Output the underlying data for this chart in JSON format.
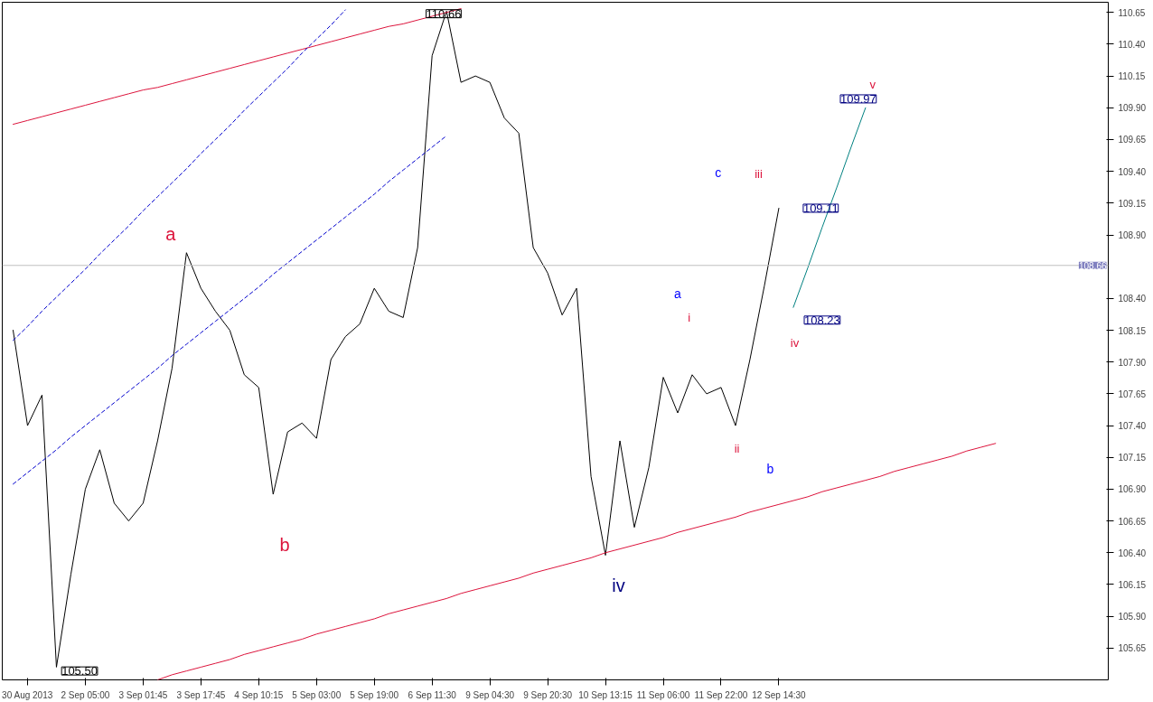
{
  "chart_data": {
    "type": "line",
    "categories": [
      null,
      "30 Aug 2013",
      null,
      null,
      null,
      "2 Sep 05:00",
      null,
      null,
      null,
      "3 Sep 01:45",
      null,
      null,
      null,
      "3 Sep 17:45",
      null,
      null,
      null,
      "4 Sep 10:15",
      null,
      null,
      null,
      "5 Sep 03:00",
      null,
      null,
      null,
      "5 Sep 19:00",
      null,
      null,
      null,
      "6 Sep 11:30",
      null,
      null,
      null,
      "9 Sep 04:30",
      null,
      null,
      null,
      "9 Sep 20:30",
      null,
      null,
      null,
      "10 Sep 13:15",
      null,
      null,
      null,
      "11 Sep 06:00",
      null,
      null,
      null,
      "11 Sep 22:00",
      null,
      null,
      null,
      "12 Sep 14:30",
      null,
      null,
      null,
      null,
      null,
      null,
      null,
      null,
      null,
      null,
      null,
      null,
      null,
      null,
      null,
      null,
      null,
      null,
      null,
      null,
      null,
      null
    ],
    "ylim": [
      105.4,
      110.73
    ],
    "yticks": [
      {
        "value": 105.65,
        "label": "105.65"
      },
      {
        "value": 105.9,
        "label": "105.90"
      },
      {
        "value": 106.15,
        "label": "106.15"
      },
      {
        "value": 106.4,
        "label": "106.40"
      },
      {
        "value": 106.65,
        "label": "106.65"
      },
      {
        "value": 106.9,
        "label": "106.90"
      },
      {
        "value": 107.15,
        "label": "107.15"
      },
      {
        "value": 107.4,
        "label": "107.40"
      },
      {
        "value": 107.65,
        "label": "107.65"
      },
      {
        "value": 107.9,
        "label": "107.90"
      },
      {
        "value": 108.15,
        "label": "108.15"
      },
      {
        "value": 108.4,
        "label": "108.40"
      },
      {
        "value": 108.9,
        "label": "108.90"
      },
      {
        "value": 109.15,
        "label": "109.15"
      },
      {
        "value": 109.4,
        "label": "109.40"
      },
      {
        "value": 109.65,
        "label": "109.65"
      },
      {
        "value": 109.9,
        "label": "109.90"
      },
      {
        "value": 110.15,
        "label": "110.15"
      },
      {
        "value": 110.4,
        "label": "110.40"
      },
      {
        "value": 110.65,
        "label": "110.65"
      }
    ],
    "grid": false,
    "series": [
      {
        "color": "#000000",
        "values": [
          108.15,
          107.4,
          107.64,
          105.5,
          106.23,
          106.9,
          107.21,
          106.79,
          106.65,
          106.79,
          107.28,
          107.85,
          108.76,
          108.48,
          108.3,
          108.15,
          107.8,
          107.7,
          106.86,
          107.35,
          107.42,
          107.3,
          107.92,
          108.1,
          108.2,
          108.48,
          108.3,
          108.25,
          108.8,
          110.31,
          110.66,
          110.1,
          110.15,
          110.1,
          109.82,
          109.7,
          108.8,
          108.6,
          108.27,
          108.48,
          107.0,
          106.38,
          107.28,
          106.6,
          107.07,
          107.78,
          107.5,
          107.8,
          107.65,
          107.7,
          107.4,
          107.92,
          108.5,
          109.11,
          null,
          null,
          null,
          null,
          null,
          null,
          null,
          null,
          null,
          null,
          null,
          null,
          null,
          null,
          null,
          null,
          null,
          null,
          null,
          null,
          null,
          null
        ]
      },
      {
        "color": "#dc143c",
        "values": [
          109.77,
          109.8,
          109.83,
          109.86,
          109.89,
          109.92,
          109.95,
          109.98,
          110.01,
          110.04,
          110.06,
          110.09,
          110.12,
          110.15,
          110.18,
          110.21,
          110.24,
          110.27,
          110.3,
          110.33,
          110.36,
          110.39,
          110.42,
          110.45,
          110.48,
          110.51,
          110.54,
          110.56,
          110.59,
          110.62,
          110.65,
          110.68,
          null,
          null,
          null,
          null,
          null,
          null,
          null,
          null,
          null,
          null,
          null,
          null,
          null,
          null,
          null,
          null,
          null,
          null,
          null,
          null,
          null,
          null,
          null,
          null,
          null,
          null,
          null,
          null,
          null,
          null,
          null,
          null,
          null,
          null,
          null,
          null,
          null,
          null,
          null,
          null,
          null,
          null,
          null,
          null
        ]
      },
      {
        "color": "#dc143c",
        "values": [
          null,
          null,
          null,
          null,
          null,
          null,
          null,
          null,
          null,
          null,
          105.4,
          105.44,
          105.47,
          105.5,
          105.53,
          105.56,
          105.6,
          105.63,
          105.66,
          105.69,
          105.72,
          105.76,
          105.79,
          105.82,
          105.85,
          105.88,
          105.92,
          105.95,
          105.98,
          106.01,
          106.04,
          106.08,
          106.11,
          106.14,
          106.17,
          106.2,
          106.24,
          106.27,
          106.3,
          106.33,
          106.36,
          106.4,
          106.43,
          106.46,
          106.49,
          106.52,
          106.56,
          106.59,
          106.62,
          106.65,
          106.68,
          106.72,
          106.75,
          106.78,
          106.81,
          106.84,
          106.88,
          106.91,
          106.94,
          106.97,
          107.0,
          107.04,
          107.07,
          107.1,
          107.13,
          107.16,
          107.2,
          107.23,
          107.26,
          null,
          null,
          null,
          null,
          null,
          null,
          null
        ]
      },
      {
        "color": "#0000cd",
        "line_style": "dashed",
        "values": [
          108.07,
          108.18,
          108.3,
          108.41,
          108.52,
          108.63,
          108.75,
          108.86,
          108.97,
          109.09,
          109.2,
          109.31,
          109.42,
          109.54,
          109.65,
          109.76,
          109.88,
          109.99,
          110.1,
          110.21,
          110.33,
          110.44,
          110.55,
          110.67,
          null,
          null,
          null,
          null,
          null,
          null,
          null,
          null,
          null,
          null,
          null,
          null,
          null,
          null,
          null,
          null,
          null,
          null,
          null,
          null,
          null,
          null,
          null,
          null,
          null,
          null,
          null,
          null,
          null,
          null,
          null,
          null,
          null,
          null,
          null,
          null,
          null,
          null,
          null,
          null,
          null,
          null,
          null,
          null,
          null,
          null,
          null,
          null,
          null,
          null,
          null,
          null
        ]
      },
      {
        "color": "#0000cd",
        "line_style": "dashed",
        "values": [
          106.94,
          107.03,
          107.12,
          107.21,
          107.31,
          107.4,
          107.49,
          107.58,
          107.67,
          107.76,
          107.85,
          107.95,
          108.04,
          108.13,
          108.22,
          108.31,
          108.4,
          108.49,
          108.59,
          108.68,
          108.77,
          108.86,
          108.95,
          109.04,
          109.13,
          109.22,
          109.32,
          109.41,
          109.5,
          109.59,
          109.68,
          null,
          null,
          null,
          null,
          null,
          null,
          null,
          null,
          null,
          null,
          null,
          null,
          null,
          null,
          null,
          null,
          null,
          null,
          null,
          null,
          null,
          null,
          null,
          null,
          null,
          null,
          null,
          null,
          null,
          null,
          null,
          null,
          null,
          null,
          null,
          null,
          null,
          null,
          null,
          null,
          null,
          null,
          null,
          null,
          null
        ]
      },
      {
        "color": "#008080",
        "values": [
          null,
          null,
          null,
          null,
          null,
          null,
          null,
          null,
          null,
          null,
          null,
          null,
          null,
          null,
          null,
          null,
          null,
          null,
          null,
          null,
          null,
          null,
          null,
          null,
          null,
          null,
          null,
          null,
          null,
          null,
          null,
          null,
          null,
          null,
          null,
          null,
          null,
          null,
          null,
          null,
          null,
          null,
          null,
          null,
          null,
          null,
          null,
          null,
          null,
          null,
          null,
          null,
          null,
          null,
          108.33,
          108.64,
          108.96,
          109.27,
          109.59,
          109.9,
          null,
          null,
          null,
          null,
          null,
          null,
          null,
          null,
          null,
          null,
          null,
          null,
          null,
          null,
          null,
          null
        ]
      }
    ],
    "ref_lines": [
      {
        "axis": "y",
        "value": 108.66,
        "label": "108.66",
        "color": "#c0c0c0"
      }
    ],
    "annotations": [
      "110.66",
      "105.50",
      "109.11",
      "108.23",
      "109.97",
      "a",
      "b",
      "iv",
      "a",
      "b",
      "c",
      "i",
      "ii",
      "iii",
      "iv",
      "v"
    ]
  }
}
